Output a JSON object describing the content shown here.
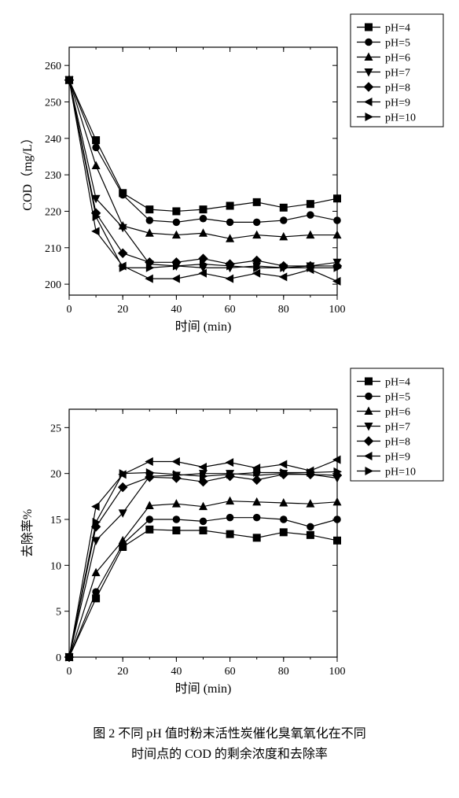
{
  "caption_line1": "图 2   不同 pH 值时粉末活性炭催化臭氧氧化在不同",
  "caption_line2": "时间点的 COD 的剩余浓度和去除率",
  "series_labels": [
    "pH=4",
    "pH=5",
    "pH=6",
    "pH=7",
    "pH=8",
    "pH=9",
    "pH=10"
  ],
  "markers": [
    "square",
    "circle",
    "triangle-up",
    "triangle-down",
    "diamond",
    "triangle-left",
    "triangle-right"
  ],
  "line_color": "#000000",
  "background_color": "#ffffff",
  "marker_fill": "#000000",
  "marker_size": 5,
  "line_width": 1.2,
  "axis_line_width": 1.2,
  "tick_fontsize": 14,
  "label_fontsize": 16,
  "legend_fontsize": 14,
  "legend_box_stroke": "#000000",
  "chart1": {
    "type": "line",
    "xlabel": "时间 (min)",
    "ylabel": "COD（mg/L）",
    "xlim": [
      0,
      100
    ],
    "ylim": [
      197,
      265
    ],
    "xtick_step": 20,
    "yticks": [
      200,
      210,
      220,
      230,
      240,
      250,
      260
    ],
    "grid": false,
    "x": [
      0,
      10,
      20,
      30,
      40,
      50,
      60,
      70,
      80,
      90,
      100
    ],
    "series": [
      {
        "label": "pH=4",
        "y": [
          256,
          239.5,
          225,
          220.5,
          220,
          220.5,
          221.5,
          222.5,
          221,
          222,
          223.5
        ]
      },
      {
        "label": "pH=5",
        "y": [
          256,
          237.5,
          224.5,
          217.5,
          217,
          218,
          217,
          217,
          217.5,
          219,
          217.5
        ]
      },
      {
        "label": "pH=6",
        "y": [
          256,
          232.5,
          216,
          214,
          213.5,
          214,
          212.5,
          213.5,
          213,
          213.5,
          213.5
        ]
      },
      {
        "label": "pH=7",
        "y": [
          256,
          223.5,
          215.5,
          205.5,
          205,
          204.5,
          204.5,
          205,
          204.5,
          205,
          206
        ]
      },
      {
        "label": "pH=8",
        "y": [
          256,
          219.5,
          208.5,
          206,
          206,
          207,
          205.5,
          206.5,
          205,
          205,
          205
        ]
      },
      {
        "label": "pH=9",
        "y": [
          256,
          214.5,
          205,
          201.5,
          201.5,
          203,
          201.5,
          203,
          202,
          204,
          200.8
        ]
      },
      {
        "label": "pH=10",
        "y": [
          256,
          218.5,
          204.5,
          204.5,
          205,
          205.5,
          205,
          204.5,
          204.5,
          204.5,
          204.5
        ]
      }
    ],
    "legend_pos": "top-right-outside"
  },
  "chart2": {
    "type": "line",
    "xlabel": "时间 (min)",
    "ylabel": "去除率%",
    "xlim": [
      0,
      100
    ],
    "ylim": [
      0,
      27
    ],
    "xtick_step": 20,
    "yticks": [
      0,
      5,
      10,
      15,
      20,
      25
    ],
    "grid": false,
    "x": [
      0,
      10,
      20,
      30,
      40,
      50,
      60,
      70,
      80,
      90,
      100
    ],
    "series": [
      {
        "label": "pH=4",
        "y": [
          0,
          6.4,
          12,
          13.9,
          13.8,
          13.8,
          13.4,
          13,
          13.6,
          13.3,
          12.7
        ]
      },
      {
        "label": "pH=5",
        "y": [
          0,
          7.1,
          12.3,
          15,
          15,
          14.8,
          15.2,
          15.2,
          15,
          14.2,
          15
        ]
      },
      {
        "label": "pH=6",
        "y": [
          0,
          9.2,
          12.7,
          16.5,
          16.7,
          16.4,
          17,
          16.9,
          16.8,
          16.7,
          16.9
        ]
      },
      {
        "label": "pH=7",
        "y": [
          0,
          12.7,
          15.7,
          19.7,
          19.8,
          20,
          20,
          19.8,
          20,
          19.9,
          19.5
        ]
      },
      {
        "label": "pH=8",
        "y": [
          0,
          14.2,
          18.5,
          19.6,
          19.5,
          19.1,
          19.7,
          19.3,
          19.9,
          19.9,
          19.8
        ]
      },
      {
        "label": "pH=9",
        "y": [
          0,
          16.4,
          19.9,
          21.3,
          21.3,
          20.7,
          21.2,
          20.6,
          21,
          20.3,
          21.5
        ]
      },
      {
        "label": "pH=10",
        "y": [
          0,
          14.7,
          20,
          20.1,
          19.9,
          19.7,
          19.9,
          20.1,
          20.1,
          20.1,
          20.2
        ]
      }
    ],
    "legend_pos": "top-right-outside"
  }
}
